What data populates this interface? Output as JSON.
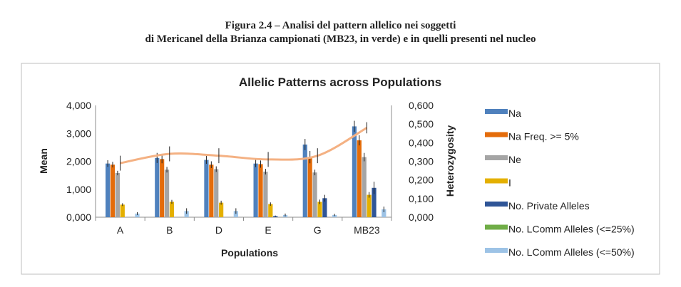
{
  "caption": {
    "line1": "Figura 2.4 – Analisi del pattern allelico nei soggetti",
    "line2": "di Mericanel della Brianza campionati (MB23, in verde) e in quelli presenti nel nucleo"
  },
  "chart_data": {
    "type": "bar",
    "title": "Allelic Patterns across Populations",
    "xlabel": "Populations",
    "ylabel": "Mean",
    "y2label": "Heterozygosity",
    "categories": [
      "A",
      "B",
      "D",
      "E",
      "G",
      "MB23"
    ],
    "ylim": [
      0,
      4
    ],
    "yticks": [
      "0,000",
      "1,000",
      "2,000",
      "3,000",
      "4,000"
    ],
    "y2lim": [
      0,
      0.6
    ],
    "y2ticks": [
      "0,000",
      "0,100",
      "0,200",
      "0,300",
      "0,400",
      "0,500",
      "0,600"
    ],
    "legend_position": "right",
    "series": [
      {
        "name": "Na",
        "color": "#4f81bd",
        "values": [
          1.92,
          2.12,
          2.05,
          1.92,
          2.6,
          3.25
        ],
        "err": [
          0.12,
          0.18,
          0.14,
          0.13,
          0.2,
          0.2
        ]
      },
      {
        "name": "Na Freq. >= 5%",
        "color": "#e46c0a",
        "values": [
          1.88,
          2.08,
          1.88,
          1.9,
          2.15,
          2.75
        ],
        "err": [
          0.1,
          0.15,
          0.12,
          0.13,
          0.22,
          0.18
        ]
      },
      {
        "name": "Ne",
        "color": "#a5a5a5",
        "values": [
          1.58,
          1.7,
          1.72,
          1.63,
          1.6,
          2.15
        ],
        "err": [
          0.08,
          0.1,
          0.1,
          0.1,
          0.1,
          0.15
        ]
      },
      {
        "name": "I",
        "color": "#e4b000",
        "values": [
          0.45,
          0.55,
          0.52,
          0.47,
          0.55,
          0.8
        ],
        "err": [
          0.05,
          0.07,
          0.07,
          0.06,
          0.08,
          0.1
        ]
      },
      {
        "name": "No. Private Alleles",
        "color": "#2f5597",
        "values": [
          0,
          0,
          0,
          0.04,
          0.68,
          1.05
        ],
        "err": [
          0,
          0,
          0,
          0.02,
          0.12,
          0.22
        ]
      },
      {
        "name": "No. LComm Alleles (<=25%)",
        "color": "#70ad47",
        "values": [
          0,
          0,
          0,
          0,
          0,
          0
        ],
        "err": [
          0,
          0,
          0,
          0,
          0,
          0
        ]
      },
      {
        "name": "No. LComm Alleles (<=50%)",
        "color": "#9dc3e6",
        "values": [
          0.13,
          0.22,
          0.22,
          0.08,
          0.08,
          0.28
        ],
        "err": [
          0.05,
          0.1,
          0.1,
          0.05,
          0.04,
          0.1
        ]
      }
    ],
    "heterozygosity_line": {
      "color": "#f4b183",
      "values": [
        0.29,
        0.34,
        0.33,
        0.31,
        0.33,
        0.48
      ],
      "err": [
        0.04,
        0.04,
        0.04,
        0.04,
        0.04,
        0.03
      ]
    }
  }
}
